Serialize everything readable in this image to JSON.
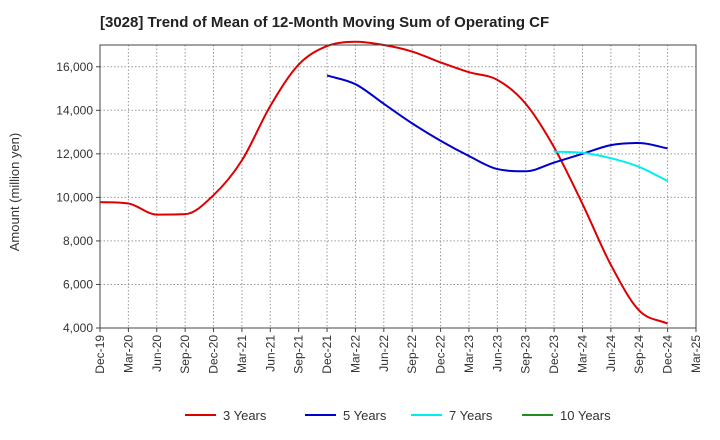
{
  "chart_data": {
    "type": "line",
    "title": "[3028]  Trend of Mean of 12-Month Moving Sum of Operating CF",
    "xlabel": "",
    "ylabel": "Amount (million yen)",
    "ylim": [
      4000,
      17000
    ],
    "yticks": [
      4000,
      6000,
      8000,
      10000,
      12000,
      14000,
      16000
    ],
    "ytick_labels": [
      "4,000",
      "6,000",
      "8,000",
      "10,000",
      "12,000",
      "14,000",
      "16,000"
    ],
    "xticks": [
      "Dec-19",
      "Mar-20",
      "Jun-20",
      "Sep-20",
      "Dec-20",
      "Mar-21",
      "Jun-21",
      "Sep-21",
      "Dec-21",
      "Mar-22",
      "Jun-22",
      "Sep-22",
      "Dec-22",
      "Mar-23",
      "Jun-23",
      "Sep-23",
      "Dec-23",
      "Mar-24",
      "Jun-24",
      "Sep-24",
      "Dec-24",
      "Mar-25"
    ],
    "grid": true,
    "legend_position": "bottom",
    "series": [
      {
        "name": "3 Years",
        "color": "#dd0000",
        "values": [
          9780,
          9720,
          9210,
          9230,
          10100,
          11700,
          14200,
          16100,
          16950,
          17150,
          17000,
          16700,
          16200,
          15750,
          15400,
          14300,
          12300,
          9700,
          6900,
          4800,
          4200
        ]
      },
      {
        "name": "5 Years",
        "color": "#0000cc",
        "values": [
          null,
          null,
          null,
          null,
          null,
          null,
          null,
          null,
          15600,
          15200,
          14300,
          13400,
          12600,
          11900,
          11300,
          11200,
          11600,
          12000,
          12400,
          12500,
          12250
        ]
      },
      {
        "name": "7 Years",
        "color": "#00eeee",
        "values": [
          null,
          null,
          null,
          null,
          null,
          null,
          null,
          null,
          null,
          null,
          null,
          null,
          null,
          null,
          null,
          null,
          12100,
          12050,
          11800,
          11400,
          10750
        ]
      },
      {
        "name": "10 Years",
        "color": "#228B22",
        "values": []
      }
    ]
  }
}
